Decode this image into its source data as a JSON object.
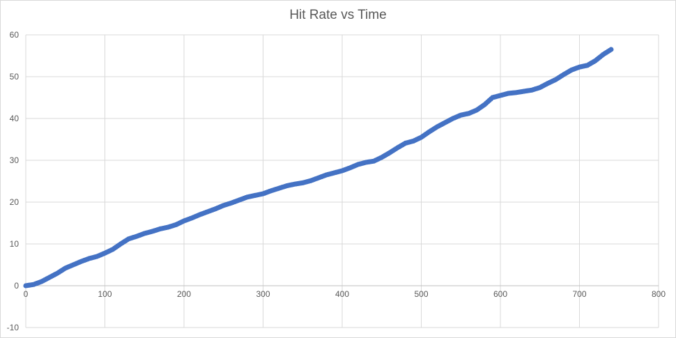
{
  "chart_data": {
    "type": "scatter",
    "title": "Hit Rate vs Time",
    "xlabel": "",
    "ylabel": "",
    "xlim": [
      0,
      800
    ],
    "ylim": [
      -10,
      60
    ],
    "x_ticks": [
      0,
      100,
      200,
      300,
      400,
      500,
      600,
      700,
      800
    ],
    "y_ticks": [
      -10,
      0,
      10,
      20,
      30,
      40,
      50,
      60
    ],
    "grid": true,
    "legend": "none",
    "marker_color": "#4472c4",
    "series": [
      {
        "points": [
          [
            0,
            0
          ],
          [
            10,
            0.3
          ],
          [
            20,
            1
          ],
          [
            30,
            2
          ],
          [
            40,
            3
          ],
          [
            50,
            4.2
          ],
          [
            60,
            5
          ],
          [
            70,
            5.8
          ],
          [
            80,
            6.5
          ],
          [
            90,
            7
          ],
          [
            100,
            7.8
          ],
          [
            110,
            8.7
          ],
          [
            120,
            10
          ],
          [
            130,
            11.2
          ],
          [
            140,
            11.8
          ],
          [
            150,
            12.5
          ],
          [
            160,
            13
          ],
          [
            170,
            13.6
          ],
          [
            180,
            14
          ],
          [
            190,
            14.6
          ],
          [
            200,
            15.5
          ],
          [
            210,
            16.2
          ],
          [
            220,
            17
          ],
          [
            230,
            17.7
          ],
          [
            240,
            18.4
          ],
          [
            250,
            19.2
          ],
          [
            260,
            19.8
          ],
          [
            270,
            20.5
          ],
          [
            280,
            21.2
          ],
          [
            290,
            21.6
          ],
          [
            300,
            22
          ],
          [
            310,
            22.7
          ],
          [
            320,
            23.3
          ],
          [
            330,
            23.9
          ],
          [
            340,
            24.3
          ],
          [
            350,
            24.6
          ],
          [
            360,
            25.1
          ],
          [
            370,
            25.8
          ],
          [
            380,
            26.5
          ],
          [
            390,
            27
          ],
          [
            400,
            27.5
          ],
          [
            410,
            28.2
          ],
          [
            420,
            29
          ],
          [
            430,
            29.5
          ],
          [
            440,
            29.8
          ],
          [
            450,
            30.7
          ],
          [
            460,
            31.8
          ],
          [
            470,
            33
          ],
          [
            480,
            34.1
          ],
          [
            490,
            34.6
          ],
          [
            500,
            35.5
          ],
          [
            510,
            36.8
          ],
          [
            520,
            38
          ],
          [
            530,
            39
          ],
          [
            540,
            40
          ],
          [
            550,
            40.8
          ],
          [
            560,
            41.2
          ],
          [
            570,
            42
          ],
          [
            580,
            43.3
          ],
          [
            590,
            45
          ],
          [
            600,
            45.5
          ],
          [
            610,
            46
          ],
          [
            620,
            46.2
          ],
          [
            630,
            46.5
          ],
          [
            640,
            46.8
          ],
          [
            650,
            47.4
          ],
          [
            660,
            48.4
          ],
          [
            670,
            49.3
          ],
          [
            680,
            50.5
          ],
          [
            690,
            51.6
          ],
          [
            700,
            52.3
          ],
          [
            710,
            52.7
          ],
          [
            720,
            53.8
          ],
          [
            730,
            55.3
          ],
          [
            740,
            56.5
          ]
        ]
      }
    ]
  }
}
